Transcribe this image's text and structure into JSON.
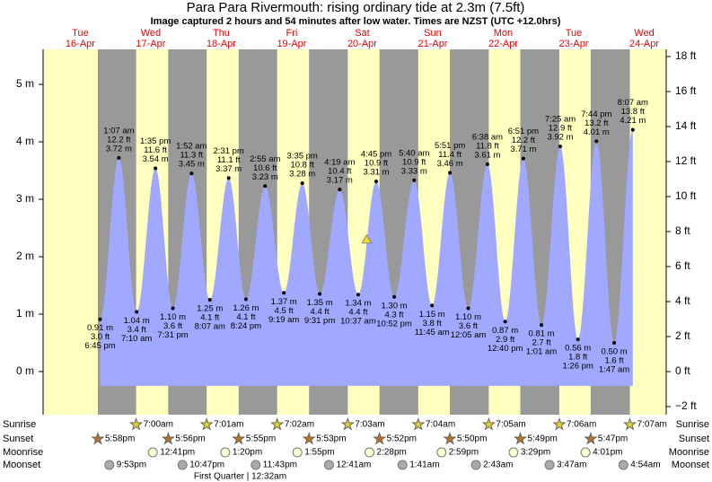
{
  "chart_data": {
    "type": "tide",
    "title": "Para Para Rivermouth: rising  ordinary tide at 2.3m (7.5ft)",
    "subtitle": "Image captured 2 hours and 54 minutes after low water. Times are NZST (UTC +12.0hrs)",
    "days": [
      {
        "weekday": "Tue",
        "date": "16-Apr"
      },
      {
        "weekday": "Wed",
        "date": "17-Apr"
      },
      {
        "weekday": "Thu",
        "date": "18-Apr"
      },
      {
        "weekday": "Fri",
        "date": "19-Apr"
      },
      {
        "weekday": "Sat",
        "date": "20-Apr"
      },
      {
        "weekday": "Sun",
        "date": "21-Apr"
      },
      {
        "weekday": "Mon",
        "date": "22-Apr"
      },
      {
        "weekday": "Tue",
        "date": "23-Apr"
      },
      {
        "weekday": "Wed",
        "date": "24-Apr"
      }
    ],
    "color": "#a0a8ff",
    "extremes": [
      {
        "day": 0,
        "time": "6:45 pm",
        "height": 0.91,
        "height_label": "0.91 m",
        "feet_label": "3.0 ft"
      },
      {
        "day": 1,
        "time": "1:07 am",
        "height": 3.72,
        "height_label": "3.72 m",
        "feet_label": "12.2 ft"
      },
      {
        "day": 1,
        "time": "7:10 am",
        "height": 1.04,
        "height_label": "1.04 m",
        "feet_label": "3.4 ft"
      },
      {
        "day": 1,
        "time": "1:35 pm",
        "height": 3.54,
        "height_label": "3.54 m",
        "feet_label": "11.6 ft"
      },
      {
        "day": 1,
        "time": "7:31 pm",
        "height": 1.1,
        "height_label": "1.10 m",
        "feet_label": "3.6 ft"
      },
      {
        "day": 2,
        "time": "1:52 am",
        "height": 3.45,
        "height_label": "3.45 m",
        "feet_label": "11.3 ft"
      },
      {
        "day": 2,
        "time": "8:07 am",
        "height": 1.25,
        "height_label": "1.25 m",
        "feet_label": "4.1 ft"
      },
      {
        "day": 2,
        "time": "2:31 pm",
        "height": 3.37,
        "height_label": "3.37 m",
        "feet_label": "11.1 ft"
      },
      {
        "day": 2,
        "time": "8:24 pm",
        "height": 1.26,
        "height_label": "1.26 m",
        "feet_label": "4.1 ft"
      },
      {
        "day": 3,
        "time": "2:55 am",
        "height": 3.23,
        "height_label": "3.23 m",
        "feet_label": "10.6 ft"
      },
      {
        "day": 3,
        "time": "9:19 am",
        "height": 1.37,
        "height_label": "1.37 m",
        "feet_label": "4.5 ft"
      },
      {
        "day": 3,
        "time": "3:35 pm",
        "height": 3.28,
        "height_label": "3.28 m",
        "feet_label": "10.8 ft"
      },
      {
        "day": 3,
        "time": "9:31 pm",
        "height": 1.35,
        "height_label": "1.35 m",
        "feet_label": "4.4 ft"
      },
      {
        "day": 4,
        "time": "4:19 am",
        "height": 3.17,
        "height_label": "3.17 m",
        "feet_label": "10.4 ft"
      },
      {
        "day": 4,
        "time": "10:37 am",
        "height": 1.34,
        "height_label": "1.34 m",
        "feet_label": "4.4 ft"
      },
      {
        "day": 4,
        "time": "4:45 pm",
        "height": 3.31,
        "height_label": "3.31 m",
        "feet_label": "10.9 ft"
      },
      {
        "day": 4,
        "time": "10:52 pm",
        "height": 1.3,
        "height_label": "1.30 m",
        "feet_label": "4.3 ft"
      },
      {
        "day": 5,
        "time": "5:40 am",
        "height": 3.33,
        "height_label": "3.33 m",
        "feet_label": "10.9 ft"
      },
      {
        "day": 5,
        "time": "11:45 am",
        "height": 1.15,
        "height_label": "1.15 m",
        "feet_label": "3.8 ft"
      },
      {
        "day": 5,
        "time": "5:51 pm",
        "height": 3.46,
        "height_label": "3.46 m",
        "feet_label": "11.4 ft"
      },
      {
        "day": 6,
        "time": "12:05 am",
        "height": 1.1,
        "height_label": "1.10 m",
        "feet_label": "3.6 ft"
      },
      {
        "day": 6,
        "time": "6:38 am",
        "height": 3.61,
        "height_label": "3.61 m",
        "feet_label": "11.8 ft"
      },
      {
        "day": 6,
        "time": "12:40 pm",
        "height": 0.87,
        "height_label": "0.87 m",
        "feet_label": "2.9 ft"
      },
      {
        "day": 6,
        "time": "6:51 pm",
        "height": 3.71,
        "height_label": "3.71 m",
        "feet_label": "12.2 ft"
      },
      {
        "day": 7,
        "time": "1:01 am",
        "height": 0.81,
        "height_label": "0.81 m",
        "feet_label": "2.7 ft"
      },
      {
        "day": 7,
        "time": "7:25 am",
        "height": 3.92,
        "height_label": "3.92 m",
        "feet_label": "12.9 ft"
      },
      {
        "day": 7,
        "time": "1:26 pm",
        "height": 0.56,
        "height_label": "0.56 m",
        "feet_label": "1.8 ft"
      },
      {
        "day": 7,
        "time": "7:44 pm",
        "height": 4.01,
        "height_label": "4.01 m",
        "feet_label": "13.2 ft"
      },
      {
        "day": 8,
        "time": "1:47 am",
        "height": 0.5,
        "height_label": "0.50 m",
        "feet_label": "1.6 ft"
      },
      {
        "day": 8,
        "time": "8:07 am",
        "height": 4.21,
        "height_label": "4.21 m",
        "feet_label": "13.8 ft"
      }
    ],
    "marker": {
      "day": 4,
      "time": "1:31 pm",
      "height": 2.3,
      "color": "#f0e020"
    },
    "ylim": [
      -0.72,
      5.61
    ],
    "yticks": [
      {
        "value": 0,
        "label": "0 m"
      },
      {
        "value": 1,
        "label": "1 m"
      },
      {
        "value": 2,
        "label": "2 m"
      },
      {
        "value": 3,
        "label": "3 m"
      },
      {
        "value": 4,
        "label": "4 m"
      },
      {
        "value": 5,
        "label": "5 m"
      }
    ],
    "y2lim": [
      -2.36,
      18.41
    ],
    "y2ticks": [
      {
        "value": -2,
        "label": "−2 ft"
      },
      {
        "value": 0,
        "label": "0 ft"
      },
      {
        "value": 2,
        "label": "2 ft"
      },
      {
        "value": 4,
        "label": "4 ft"
      },
      {
        "value": 6,
        "label": "6 ft"
      },
      {
        "value": 8,
        "label": "8 ft"
      },
      {
        "value": 10,
        "label": "10 ft"
      },
      {
        "value": 12,
        "label": "12 ft"
      },
      {
        "value": 14,
        "label": "14 ft"
      },
      {
        "value": 16,
        "label": "16 ft"
      },
      {
        "value": 18,
        "label": "18 ft"
      }
    ],
    "rows": [
      {
        "name": "Sunrise",
        "icon": "sunrise",
        "events": [
          {
            "day": 1,
            "time": "7:00am"
          },
          {
            "day": 2,
            "time": "7:01am"
          },
          {
            "day": 3,
            "time": "7:02am"
          },
          {
            "day": 4,
            "time": "7:03am"
          },
          {
            "day": 5,
            "time": "7:04am"
          },
          {
            "day": 6,
            "time": "7:05am"
          },
          {
            "day": 7,
            "time": "7:06am"
          },
          {
            "day": 8,
            "time": "7:07am"
          }
        ]
      },
      {
        "name": "Sunset",
        "icon": "sunset",
        "events": [
          {
            "day": 0,
            "time": "5:58pm"
          },
          {
            "day": 1,
            "time": "5:56pm"
          },
          {
            "day": 2,
            "time": "5:55pm"
          },
          {
            "day": 3,
            "time": "5:53pm"
          },
          {
            "day": 4,
            "time": "5:52pm"
          },
          {
            "day": 5,
            "time": "5:50pm"
          },
          {
            "day": 6,
            "time": "5:49pm"
          },
          {
            "day": 7,
            "time": "5:47pm"
          }
        ]
      },
      {
        "name": "Moonrise",
        "icon": "moonrise",
        "events": [
          {
            "day": 1,
            "time": "12:41pm"
          },
          {
            "day": 2,
            "time": "1:20pm"
          },
          {
            "day": 3,
            "time": "1:55pm"
          },
          {
            "day": 4,
            "time": "2:28pm"
          },
          {
            "day": 5,
            "time": "2:59pm"
          },
          {
            "day": 6,
            "time": "3:29pm"
          },
          {
            "day": 7,
            "time": "4:01pm"
          }
        ]
      },
      {
        "name": "Moonset",
        "icon": "moonset",
        "events": [
          {
            "day": 0,
            "time": "9:53pm"
          },
          {
            "day": 1,
            "time": "10:47pm"
          },
          {
            "day": 2,
            "time": "11:43pm"
          },
          {
            "day": 4,
            "time": "12:41am"
          },
          {
            "day": 5,
            "time": "1:41am"
          },
          {
            "day": 6,
            "time": "2:43am"
          },
          {
            "day": 7,
            "time": "3:47am"
          },
          {
            "day": 8,
            "time": "4:54am"
          }
        ]
      }
    ],
    "moon_phase": {
      "label": "First Quarter | 12:32am",
      "day": 3
    }
  }
}
